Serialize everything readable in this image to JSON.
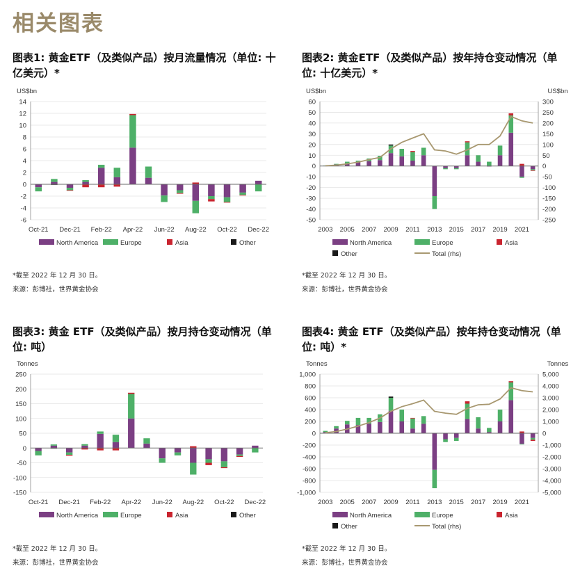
{
  "page_title": "相关图表",
  "charts": [
    {
      "id": "c1",
      "title": "图表1: 黄金ETF（及类似产品）按月流量情况（单位: 十亿美元）*",
      "footnote": "*截至 2022 年 12 月 30 日。",
      "source": "来源：彭博社，世界黄金协会",
      "chart_data": {
        "type": "bar",
        "stacked": true,
        "left_axis_unit": "US$bn",
        "ylim": [
          -6,
          14
        ],
        "yticks": [
          -6,
          -4,
          -2,
          0,
          2,
          4,
          6,
          8,
          10,
          12,
          14
        ],
        "x_tick_labels": [
          "Oct-21",
          "Dec-21",
          "Feb-22",
          "Apr-22",
          "Jun-22",
          "Aug-22",
          "Oct-22",
          "Dec-22"
        ],
        "categories": [
          "Oct-21",
          "Nov-21",
          "Dec-21",
          "Jan-22",
          "Feb-22",
          "Mar-22",
          "Apr-22",
          "May-22",
          "Jun-22",
          "Jul-22",
          "Aug-22",
          "Sep-22",
          "Oct-22",
          "Nov-22",
          "Dec-22"
        ],
        "series": [
          {
            "name": "North America",
            "values": [
              -0.5,
              0.4,
              -0.6,
              0.4,
              2.8,
              1.2,
              6.2,
              1.1,
              -1.9,
              -1.0,
              -2.8,
              -2.0,
              -2.2,
              -1.4,
              0.6
            ]
          },
          {
            "name": "Europe",
            "values": [
              -0.7,
              0.5,
              -0.4,
              0.3,
              0.5,
              1.6,
              5.5,
              1.9,
              -1.1,
              -0.5,
              -2.1,
              -0.5,
              -0.8,
              -0.4,
              -1.2
            ]
          },
          {
            "name": "Asia",
            "values": [
              0.0,
              0.0,
              -0.1,
              -0.5,
              -0.5,
              -0.4,
              0.2,
              0.0,
              0.0,
              -0.1,
              0.3,
              -0.4,
              -0.1,
              -0.1,
              0.0
            ]
          },
          {
            "name": "Other",
            "values": [
              0.0,
              -0.1,
              0.0,
              0.0,
              0.0,
              0.0,
              0.0,
              0.0,
              0.0,
              0.0,
              0.0,
              0.0,
              0.0,
              0.0,
              0.0
            ]
          }
        ]
      }
    },
    {
      "id": "c2",
      "title": "图表2: 黄金ETF（及类似产品）按年持仓变动情况（单位: 十亿美元）*",
      "footnote": "*截至 2022 年 12 月 30 日。",
      "source": "来源：彭博社，世界黄金协会",
      "chart_data": {
        "type": "bar",
        "stacked": true,
        "left_axis_unit": "US$bn",
        "right_axis_unit": "US$bn",
        "ylim": [
          -50,
          60
        ],
        "yticks": [
          -50,
          -40,
          -30,
          -20,
          -10,
          0,
          10,
          20,
          30,
          40,
          50,
          60
        ],
        "y2lim": [
          -250,
          300
        ],
        "y2ticks": [
          -250,
          -200,
          -150,
          -100,
          -50,
          0,
          50,
          100,
          150,
          200,
          250,
          300
        ],
        "x_tick_labels": [
          "2003",
          "2005",
          "2007",
          "2009",
          "2011",
          "2013",
          "2015",
          "2017",
          "2019",
          "2021"
        ],
        "categories": [
          "2003",
          "2004",
          "2005",
          "2006",
          "2007",
          "2008",
          "2009",
          "2010",
          "2011",
          "2012",
          "2013",
          "2014",
          "2015",
          "2016",
          "2017",
          "2018",
          "2019",
          "2020",
          "2021",
          "2022"
        ],
        "series": [
          {
            "name": "North America",
            "values": [
              0.2,
              1.5,
              2.5,
              3.5,
              4.5,
              5.5,
              12,
              9,
              5,
              10,
              -28,
              -2,
              -2,
              10,
              4,
              -0.5,
              10,
              31,
              -10,
              -3
            ]
          },
          {
            "name": "Europe",
            "values": [
              0.2,
              0.5,
              1.5,
              1.5,
              2.5,
              4,
              7,
              7,
              8,
              7,
              -12,
              -1,
              -1,
              12,
              6,
              4,
              9,
              16,
              -1,
              -1
            ]
          },
          {
            "name": "Asia",
            "values": [
              0,
              0,
              0,
              0,
              0,
              0,
              0,
              0,
              1,
              0,
              0,
              0,
              0,
              1,
              0,
              0,
              0,
              2,
              2,
              -0.5
            ]
          },
          {
            "name": "Other",
            "values": [
              0,
              0,
              0,
              0,
              0,
              0,
              1,
              0,
              0,
              0,
              0,
              0,
              0,
              0,
              0,
              0,
              0,
              0,
              0,
              0
            ]
          }
        ],
        "line": {
          "name": "Total (rhs)",
          "values": [
            1,
            4,
            10,
            18,
            30,
            40,
            80,
            110,
            130,
            150,
            75,
            70,
            55,
            75,
            100,
            100,
            140,
            230,
            210,
            200
          ]
        }
      }
    },
    {
      "id": "c3",
      "title": "图表3: 黄金 ETF（及类似产品）按月持仓变动情况（单位: 吨）",
      "footnote": "*截至 2022 年 12 月 30 日。",
      "source": "来源：彭博社，世界黄金协会",
      "chart_data": {
        "type": "bar",
        "stacked": true,
        "left_axis_unit": "Tonnes",
        "ylim": [
          -150,
          250
        ],
        "yticks": [
          -150,
          -100,
          -50,
          0,
          50,
          100,
          150,
          200,
          250
        ],
        "x_tick_labels": [
          "Oct-21",
          "Dec-21",
          "Feb-22",
          "Apr-22",
          "Jun-22",
          "Aug-22",
          "Oct-22",
          "Dec-22"
        ],
        "categories": [
          "Oct-21",
          "Nov-21",
          "Dec-21",
          "Jan-22",
          "Feb-22",
          "Mar-22",
          "Apr-22",
          "May-22",
          "Jun-22",
          "Jul-22",
          "Aug-22",
          "Sep-22",
          "Oct-22",
          "Nov-22",
          "Dec-22"
        ],
        "series": [
          {
            "name": "North America",
            "values": [
              -10,
              8,
              -15,
              8,
              48,
              20,
              100,
              15,
              -35,
              -15,
              -50,
              -38,
              -45,
              -22,
              8
            ]
          },
          {
            "name": "Europe",
            "values": [
              -15,
              4,
              -8,
              5,
              8,
              25,
              83,
              18,
              -15,
              -10,
              -40,
              -12,
              -20,
              -5,
              -15
            ]
          },
          {
            "name": "Asia",
            "values": [
              0,
              0,
              -3,
              -5,
              -8,
              -8,
              4,
              0,
              0,
              0,
              6,
              -8,
              -3,
              -3,
              0
            ]
          },
          {
            "name": "Other",
            "values": [
              0,
              -2,
              0,
              0,
              0,
              0,
              0,
              0,
              0,
              0,
              0,
              0,
              0,
              0,
              0
            ]
          }
        ]
      }
    },
    {
      "id": "c4",
      "title": "图表4: 黄金 ETF（及类似产品）按年持仓变动情况（单位: 吨）*",
      "footnote": "*截至 2022 年 12 月 30 日。",
      "source": "来源：彭博社，世界黄金协会",
      "chart_data": {
        "type": "bar",
        "stacked": true,
        "left_axis_unit": "Tonnes",
        "right_axis_unit": "Tonnes",
        "ylim": [
          -1000,
          1000
        ],
        "yticks": [
          -1000,
          -800,
          -600,
          -400,
          -200,
          0,
          200,
          400,
          600,
          800,
          1000
        ],
        "y2lim": [
          -5000,
          5000
        ],
        "y2ticks": [
          -5000,
          -4000,
          -3000,
          -2000,
          -1000,
          0,
          1000,
          2000,
          3000,
          4000,
          5000
        ],
        "x_tick_labels": [
          "2003",
          "2005",
          "2007",
          "2009",
          "2011",
          "2013",
          "2015",
          "2017",
          "2019",
          "2021"
        ],
        "categories": [
          "2003",
          "2004",
          "2005",
          "2006",
          "2007",
          "2008",
          "2009",
          "2010",
          "2011",
          "2012",
          "2013",
          "2014",
          "2015",
          "2016",
          "2017",
          "2018",
          "2019",
          "2020",
          "2021",
          "2022"
        ],
        "series": [
          {
            "name": "North America",
            "values": [
              20,
              80,
              150,
              140,
              160,
              190,
              380,
              200,
              80,
              160,
              -620,
              -100,
              -80,
              240,
              80,
              20,
              200,
              560,
              -180,
              -80
            ]
          },
          {
            "name": "Europe",
            "values": [
              20,
              40,
              60,
              120,
              100,
              130,
              220,
              200,
              170,
              130,
              -310,
              -50,
              -50,
              260,
              190,
              70,
              200,
              300,
              -10,
              -30
            ]
          },
          {
            "name": "Asia",
            "values": [
              0,
              0,
              0,
              0,
              0,
              0,
              0,
              0,
              10,
              0,
              0,
              0,
              0,
              40,
              0,
              0,
              0,
              20,
              30,
              -20
            ]
          },
          {
            "name": "Other",
            "values": [
              0,
              0,
              0,
              0,
              0,
              0,
              20,
              0,
              0,
              0,
              0,
              0,
              0,
              0,
              0,
              0,
              0,
              0,
              0,
              0
            ]
          }
        ],
        "line": {
          "name": "Total (rhs)",
          "values": [
            40,
            150,
            350,
            600,
            900,
            1280,
            1860,
            2250,
            2500,
            2800,
            1850,
            1700,
            1600,
            2100,
            2400,
            2450,
            2900,
            3850,
            3600,
            3500
          ]
        }
      }
    }
  ],
  "colors": {
    "North America": "#7b3f83",
    "Europe": "#4eb068",
    "Asia": "#c9242f",
    "Other": "#1a1a1a",
    "Total (rhs)": "#a89870",
    "grid": "#e3e3e3",
    "axis": "#8a8a8a"
  }
}
